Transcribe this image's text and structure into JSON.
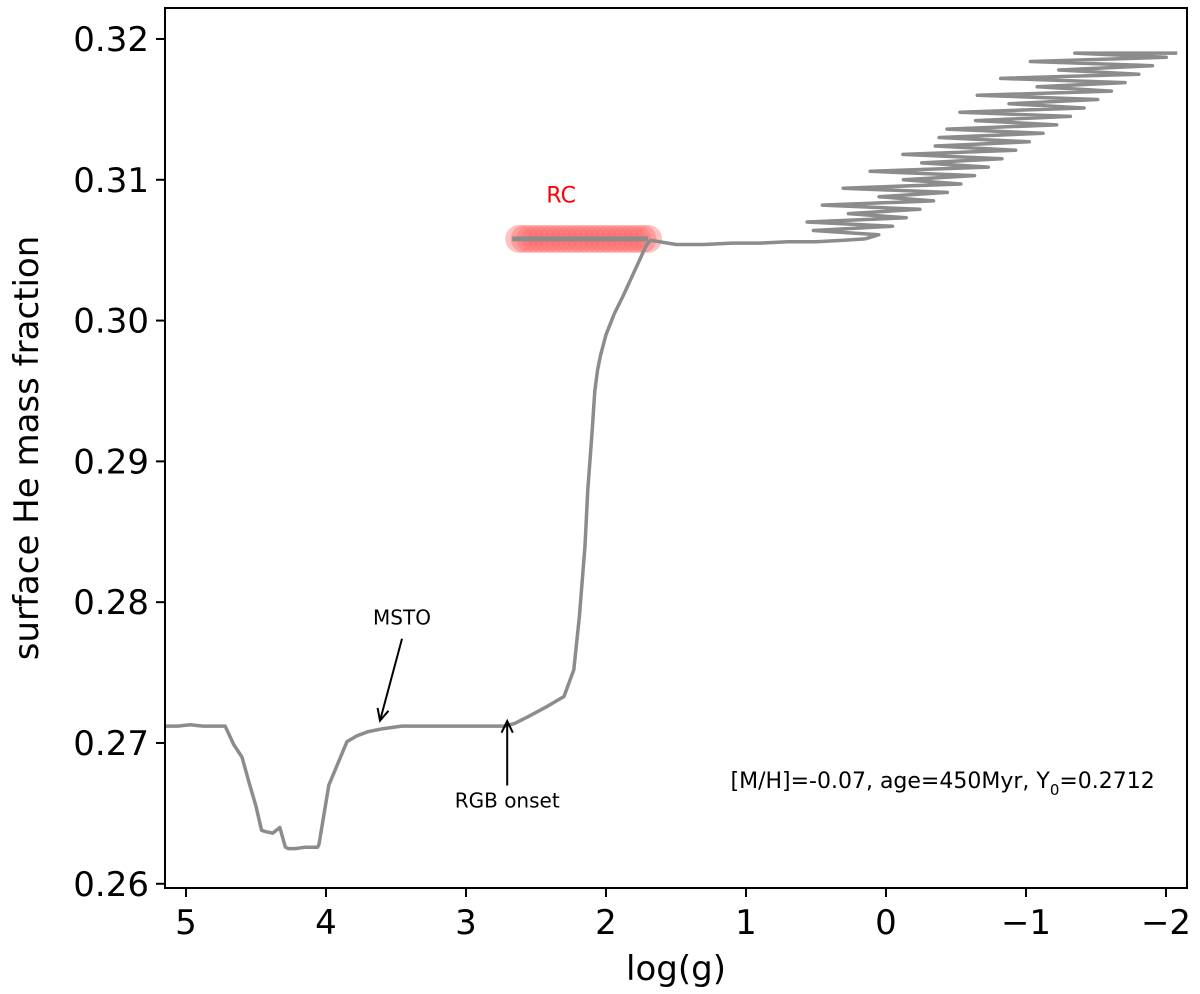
{
  "chart_data": {
    "type": "line",
    "title": "",
    "xlabel": "log(g)",
    "ylabel": "surface He mass fraction",
    "xlim": [
      5.15,
      -2.15
    ],
    "ylim": [
      0.2597,
      0.3222
    ],
    "x_inverted": true,
    "grid": false,
    "xticks": [
      5,
      4,
      3,
      2,
      1,
      0,
      -1,
      -2
    ],
    "xtick_labels": [
      "5",
      "4",
      "3",
      "2",
      "1",
      "0",
      "−1",
      "−2"
    ],
    "yticks": [
      0.26,
      0.27,
      0.28,
      0.29,
      0.3,
      0.31,
      0.32
    ],
    "ytick_labels": [
      "0.26",
      "0.27",
      "0.28",
      "0.29",
      "0.30",
      "0.31",
      "0.32"
    ],
    "colors": {
      "track": "#8c8c8c",
      "rc_marker": "#ff6666",
      "rc_text": "#ff0000"
    },
    "series": [
      {
        "x": [
          5.15,
          5.06,
          4.97,
          4.88,
          4.72,
          4.66,
          4.6,
          4.55,
          4.5,
          4.46,
          4.43,
          4.38,
          4.33,
          4.31,
          4.29,
          4.27,
          4.22,
          4.15,
          4.06,
          4.05,
          3.98,
          3.85,
          3.78,
          3.7,
          3.6,
          3.46,
          3.3,
          3.1,
          2.9,
          2.72,
          2.65,
          2.55,
          2.42,
          2.3,
          2.23,
          2.19,
          2.15,
          2.13,
          2.1,
          2.08,
          2.06,
          2.04,
          2.0,
          1.94,
          1.88,
          1.82,
          1.76,
          1.71,
          1.68,
          1.5,
          1.3,
          1.1,
          0.9,
          0.7,
          0.5,
          0.3,
          0.15
        ],
        "y": [
          0.2712,
          0.2712,
          0.2713,
          0.2712,
          0.2712,
          0.2699,
          0.269,
          0.2672,
          0.2655,
          0.2638,
          0.2637,
          0.2636,
          0.264,
          0.2633,
          0.2626,
          0.2625,
          0.2625,
          0.2626,
          0.2626,
          0.2628,
          0.267,
          0.2701,
          0.2705,
          0.2708,
          0.271,
          0.2712,
          0.2712,
          0.2712,
          0.2712,
          0.2712,
          0.2714,
          0.2719,
          0.2726,
          0.2733,
          0.2752,
          0.279,
          0.284,
          0.288,
          0.292,
          0.295,
          0.2965,
          0.2975,
          0.299,
          0.3005,
          0.3017,
          0.303,
          0.3043,
          0.3054,
          0.3057,
          0.3054,
          0.3054,
          0.3055,
          0.3055,
          0.3056,
          0.3056,
          0.3057,
          0.3058
        ]
      }
    ],
    "rc_marker": {
      "x_start": 2.62,
      "x_end": 1.7,
      "y": 0.3058,
      "count": 24
    },
    "annotations": {
      "rc": {
        "text": "RC",
        "x": 2.32,
        "y": 0.3084
      },
      "msto": {
        "text": "MSTO",
        "x": 3.6,
        "y": 0.2784,
        "arrow_to_x": 3.6,
        "arrow_to_y": 0.2713
      },
      "rgb_onset": {
        "text": "RGB onset",
        "x": 2.72,
        "y": 0.2657,
        "arrow_to_x": 2.72,
        "arrow_to_y": 0.2717
      },
      "params": {
        "text_main": "[M/H]=-0.07, age=450Myr, Y",
        "text_sub": "0",
        "text_tail": "=0.2712",
        "x": -1.92,
        "y": 0.2668
      }
    }
  }
}
